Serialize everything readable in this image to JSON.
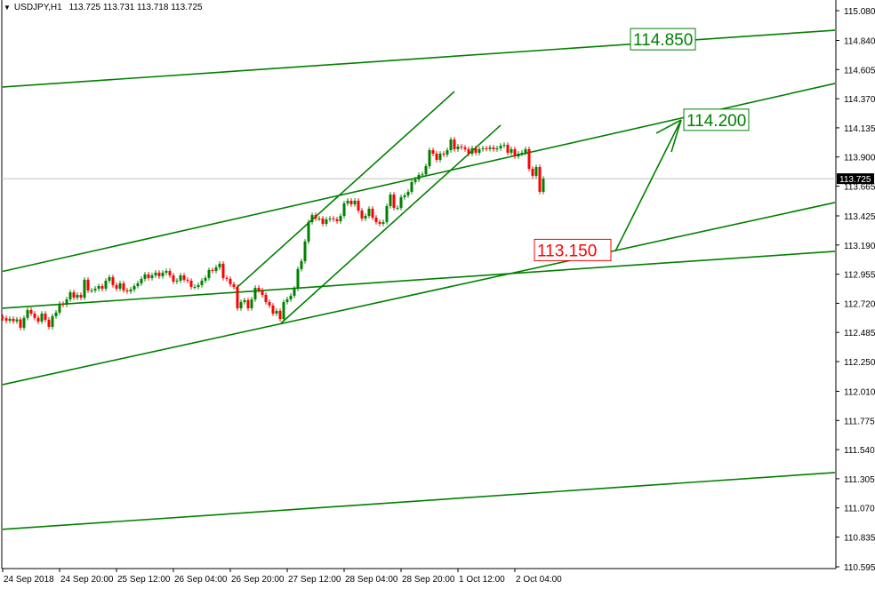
{
  "header": {
    "symbol": "USDJPY,H1",
    "ohlc": "113.725 113.731 113.718 113.725",
    "menu_icon": "triangle-down-icon"
  },
  "colors": {
    "bull": "#008000",
    "bear": "#ff0000",
    "lines": "#008000",
    "grid_current": "#c0c0c0",
    "label_green": "#008000",
    "label_red": "#ff0000",
    "axis": "#000000"
  },
  "chart_data": {
    "type": "candlestick",
    "symbol": "USDJPY",
    "timeframe": "H1",
    "ylim": [
      110.595,
      115.08
    ],
    "y_ticks": [
      "115.080",
      "114.840",
      "114.605",
      "114.370",
      "114.135",
      "113.900",
      "113.665",
      "113.425",
      "113.190",
      "112.955",
      "112.720",
      "112.485",
      "112.250",
      "112.010",
      "111.775",
      "111.540",
      "111.305",
      "111.070",
      "110.835",
      "110.595"
    ],
    "x_ticks": [
      {
        "bar": 0,
        "label": "24 Sep 2018"
      },
      {
        "bar": 16,
        "label": "24 Sep 20:00"
      },
      {
        "bar": 32,
        "label": "25 Sep 12:00"
      },
      {
        "bar": 48,
        "label": "26 Sep 04:00"
      },
      {
        "bar": 64,
        "label": "26 Sep 20:00"
      },
      {
        "bar": 80,
        "label": "27 Sep 12:00"
      },
      {
        "bar": 96,
        "label": "28 Sep 04:00"
      },
      {
        "bar": 112,
        "label": "28 Sep 20:00"
      },
      {
        "bar": 128,
        "label": "1 Oct 12:00"
      },
      {
        "bar": 144,
        "label": "2 Oct 04:00"
      }
    ],
    "current_price": "113.725",
    "closes": [
      112.6,
      112.58,
      112.595,
      112.575,
      112.59,
      112.523,
      112.602,
      112.666,
      112.637,
      112.602,
      112.573,
      112.637,
      112.587,
      112.53,
      112.616,
      112.645,
      112.716,
      112.709,
      112.752,
      112.809,
      112.766,
      112.788,
      112.766,
      112.91,
      112.824,
      112.824,
      112.838,
      112.859,
      112.838,
      112.902,
      112.931,
      112.867,
      112.838,
      112.881,
      112.824,
      112.816,
      112.831,
      112.859,
      112.881,
      112.917,
      112.953,
      112.924,
      112.945,
      112.967,
      112.938,
      112.967,
      112.981,
      112.945,
      112.895,
      112.902,
      112.945,
      112.91,
      112.902,
      112.852,
      112.852,
      112.867,
      112.902,
      112.924,
      112.988,
      112.981,
      113.01,
      113.039,
      112.924,
      112.917,
      112.874,
      112.852,
      112.68,
      112.73,
      112.745,
      112.68,
      112.752,
      112.845,
      112.824,
      112.788,
      112.73,
      112.702,
      112.637,
      112.659,
      112.594,
      112.73,
      112.752,
      112.781,
      112.838,
      112.996,
      113.06,
      113.218,
      113.375,
      113.432,
      113.404,
      113.404,
      113.361,
      113.397,
      113.404,
      113.397,
      113.382,
      113.425,
      113.526,
      113.547,
      113.518,
      113.547,
      113.468,
      113.404,
      113.425,
      113.483,
      113.411,
      113.375,
      113.361,
      113.375,
      113.504,
      113.597,
      113.49,
      113.49,
      113.576,
      113.59,
      113.619,
      113.698,
      113.719,
      113.755,
      113.76,
      113.826,
      113.955,
      113.927,
      113.877,
      113.927,
      113.92,
      113.955,
      114.041,
      113.963,
      113.984,
      113.977,
      113.963,
      113.927,
      113.97,
      113.934,
      113.963,
      113.97,
      113.965,
      113.977,
      113.963,
      113.97,
      113.991,
      113.998,
      113.934,
      113.963,
      113.905,
      113.927,
      113.934,
      113.963,
      113.805,
      113.748,
      113.819,
      113.619,
      113.725
    ],
    "trendlines": [
      {
        "from": [
          0,
          114.464
        ],
        "to": [
          234,
          114.922
        ]
      },
      {
        "from": [
          0,
          112.977
        ],
        "to": [
          234,
          114.493
        ]
      },
      {
        "from": [
          0,
          112.68
        ],
        "to": [
          234,
          113.139
        ]
      },
      {
        "from": [
          0,
          112.064
        ],
        "to": [
          234,
          113.533
        ]
      },
      {
        "from": [
          0,
          110.897
        ],
        "to": [
          234,
          111.355
        ]
      },
      {
        "from": [
          65.5,
          112.838
        ],
        "to": [
          127,
          114.428
        ]
      },
      {
        "from": [
          78.25,
          112.559
        ],
        "to": [
          140,
          114.156
        ]
      }
    ],
    "arrow": {
      "from": [
        172.25,
        113.139
      ],
      "to": [
        190.75,
        114.199
      ]
    },
    "labels": [
      {
        "text": "114.850",
        "bar": 177,
        "price": 114.85,
        "color": "green"
      },
      {
        "text": "114.200",
        "bar": 192,
        "price": 114.2,
        "color": "green"
      },
      {
        "text": "113.150",
        "bar": 150,
        "price": 113.15,
        "color": "red"
      }
    ]
  }
}
